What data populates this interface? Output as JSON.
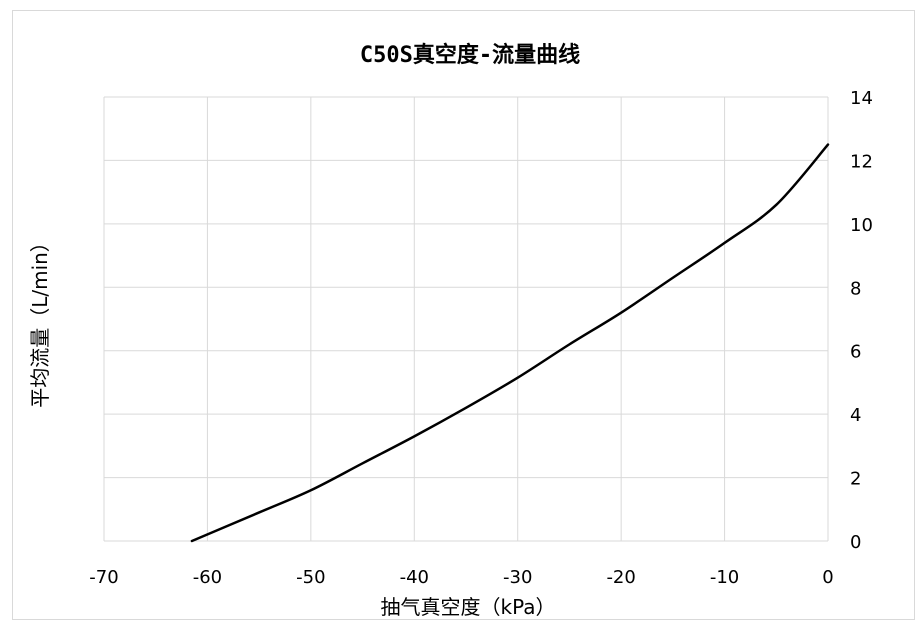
{
  "chart_data": {
    "type": "line",
    "title": "C50S真空度-流量曲线",
    "xlabel": "抽气真空度（kPa）",
    "ylabel": "平均流量（L/min）",
    "xlim": [
      -70,
      0
    ],
    "ylim": [
      0,
      14
    ],
    "x_ticks": [
      "-70",
      "-60",
      "-50",
      "-40",
      "-30",
      "-20",
      "-10",
      "0"
    ],
    "y_ticks": [
      "0",
      "2",
      "4",
      "6",
      "8",
      "10",
      "12",
      "14"
    ],
    "y_axis_side": "right",
    "grid": true,
    "legend": false,
    "line_color": "#000000",
    "grid_color": "#d9d9d9",
    "series": [
      {
        "x": [
          -61.5,
          -55,
          -50,
          -45,
          -40,
          -35,
          -30,
          -25,
          -20,
          -15,
          -10,
          -5,
          0
        ],
        "y": [
          0.0,
          0.9,
          1.6,
          2.45,
          3.3,
          4.2,
          5.15,
          6.2,
          7.2,
          8.3,
          9.4,
          10.6,
          12.5
        ]
      }
    ]
  }
}
